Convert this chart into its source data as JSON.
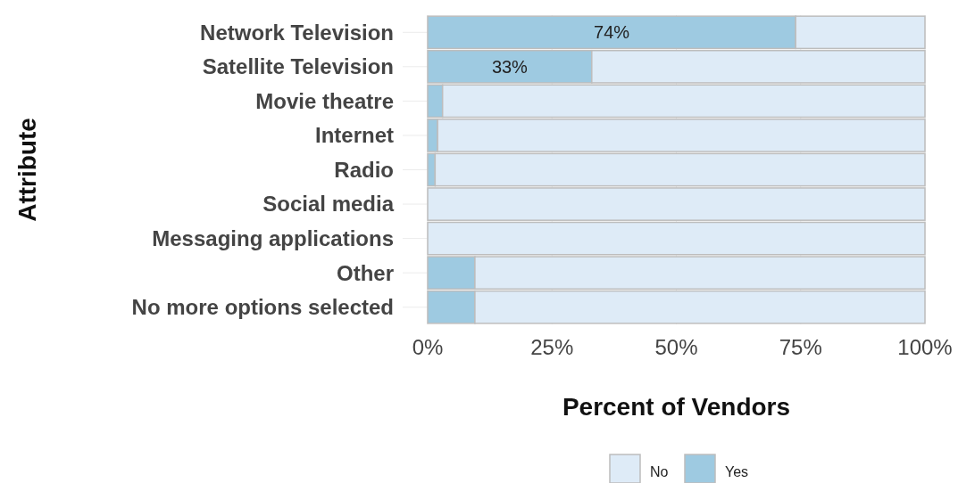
{
  "chart_data": {
    "type": "bar",
    "orientation": "horizontal",
    "stacked": true,
    "xlabel": "Percent of Vendors",
    "ylabel": "Attribute",
    "categories": [
      "Network Television",
      "Satellite Television",
      "Movie theatre",
      "Internet",
      "Radio",
      "Social media",
      "Messaging applications",
      "Other",
      "No more options selected"
    ],
    "series": [
      {
        "name": "Yes",
        "color": "#9ecae1",
        "values": [
          74,
          33,
          3,
          2,
          1.5,
          0,
          0,
          9.5,
          9.5
        ],
        "value_labels": [
          "74%",
          "33%",
          null,
          null,
          null,
          null,
          null,
          null,
          null
        ]
      },
      {
        "name": "No",
        "color": "#deebf7",
        "values": [
          26,
          67,
          97,
          98,
          98.5,
          100,
          100,
          90.5,
          90.5
        ]
      }
    ],
    "xlim": [
      0,
      100
    ],
    "xticks": [
      {
        "value": 0,
        "label": "0%"
      },
      {
        "value": 25,
        "label": "25%"
      },
      {
        "value": 50,
        "label": "50%"
      },
      {
        "value": 75,
        "label": "75%"
      },
      {
        "value": 100,
        "label": "100%"
      }
    ],
    "grid": true,
    "legend": "bottom"
  }
}
